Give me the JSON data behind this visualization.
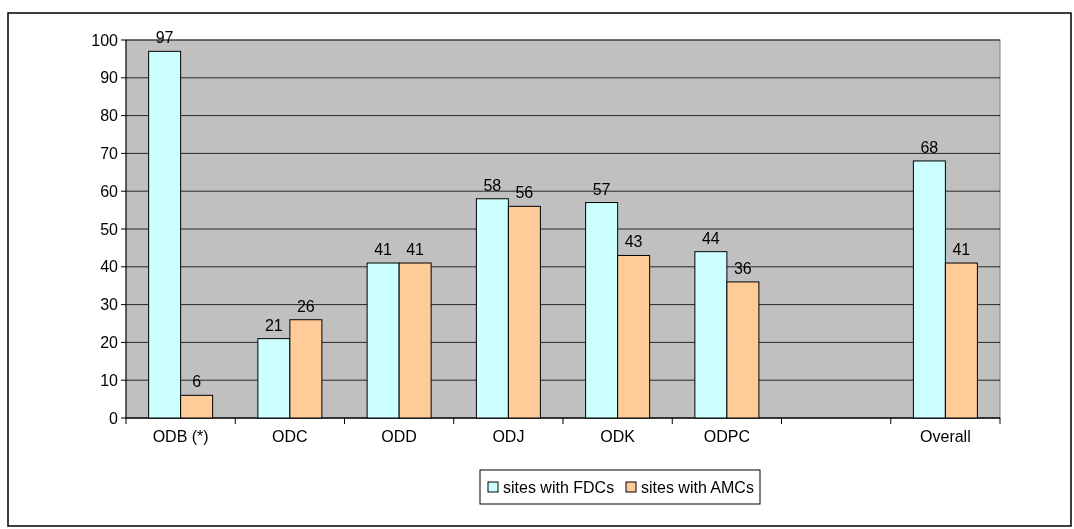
{
  "chart_data": {
    "type": "bar",
    "categories": [
      "ODB (*)",
      "ODC",
      "ODD",
      "ODJ",
      "ODK",
      "ODPC",
      null,
      "Overall"
    ],
    "series": [
      {
        "name": "sites with FDCs",
        "color": "#ccffff",
        "values": [
          97,
          21,
          41,
          58,
          57,
          44,
          null,
          68
        ]
      },
      {
        "name": "sites with AMCs",
        "color": "#ffcc99",
        "values": [
          6,
          26,
          41,
          56,
          43,
          36,
          null,
          41
        ]
      }
    ],
    "ylim": [
      0,
      100
    ],
    "yticks": [
      0,
      10,
      20,
      30,
      40,
      50,
      60,
      70,
      80,
      90,
      100
    ],
    "grid": "y",
    "legend": "bottom",
    "data_labels": true
  }
}
